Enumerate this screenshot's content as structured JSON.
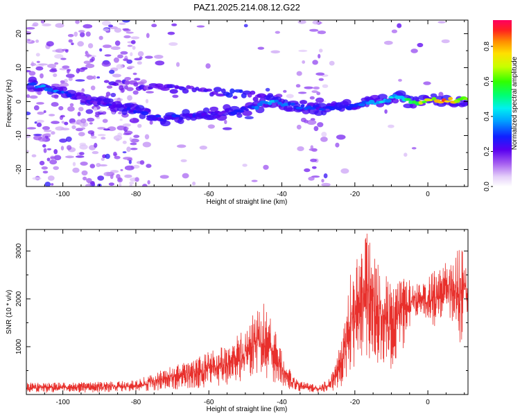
{
  "title": "PAZ1.2025.214.08.12.G22",
  "colors": {
    "snr_line": "#e8302c",
    "frame": "#000000"
  },
  "chart_data": [
    {
      "type": "heatmap",
      "xlabel": "Height of straight line (km)",
      "ylabel": "Frequency (Hz)",
      "xlim": [
        -110,
        11
      ],
      "ylim": [
        -25,
        24
      ],
      "xticks": [
        -100,
        -80,
        -60,
        -40,
        -20,
        0
      ],
      "yticks": [
        -20,
        -10,
        0,
        10,
        20
      ],
      "colorbar": {
        "label": "Normalized spectral amplitude",
        "range": [
          0,
          0.95
        ],
        "ticks": [
          "0.0",
          "0.2",
          "0.4",
          "0.6",
          "0.8"
        ],
        "colormap": "white-purple-blue-cyan-green-yellow-orange-red"
      },
      "main_track": [
        {
          "x": -108,
          "y": 5,
          "v": 0.35
        },
        {
          "x": -104,
          "y": 3.5,
          "v": 0.45
        },
        {
          "x": -95,
          "y": 1,
          "v": 0.2
        },
        {
          "x": -83,
          "y": -2,
          "v": 0.3
        },
        {
          "x": -73,
          "y": -5,
          "v": 0.3
        },
        {
          "x": -66,
          "y": -4.5,
          "v": 0.3
        },
        {
          "x": -58,
          "y": -3.5,
          "v": 0.25
        },
        {
          "x": -50,
          "y": -2.5,
          "v": 0.3
        },
        {
          "x": -43,
          "y": 0,
          "v": 0.5
        },
        {
          "x": -38,
          "y": -1,
          "v": 0.35
        },
        {
          "x": -30,
          "y": -2,
          "v": 0.3
        },
        {
          "x": -22,
          "y": -1.5,
          "v": 0.35
        },
        {
          "x": -13,
          "y": 0,
          "v": 0.45
        },
        {
          "x": -8,
          "y": 1.5,
          "v": 0.5
        },
        {
          "x": -4,
          "y": -0.5,
          "v": 0.7
        },
        {
          "x": 0,
          "y": 0.5,
          "v": 0.85
        },
        {
          "x": 5,
          "y": 0.3,
          "v": 0.9
        },
        {
          "x": 10,
          "y": 0.5,
          "v": 0.8
        }
      ],
      "upper_branch": [
        {
          "x": -85,
          "y": 5,
          "v": 0.2
        },
        {
          "x": -70,
          "y": 4,
          "v": 0.2
        },
        {
          "x": -60,
          "y": 3,
          "v": 0.25
        },
        {
          "x": -50,
          "y": 2,
          "v": 0.25
        },
        {
          "x": -42,
          "y": 1,
          "v": 0.2
        }
      ]
    },
    {
      "type": "line",
      "xlabel": "Height of straight line (km)",
      "ylabel": "SNR (10 * v/v)",
      "xlim": [
        -110,
        11
      ],
      "ylim": [
        0,
        3450
      ],
      "xticks": [
        -100,
        -80,
        -60,
        -40,
        -20,
        0
      ],
      "yticks": [
        1000,
        2000,
        3000
      ],
      "envelope": {
        "x": [
          -110,
          -100,
          -90,
          -85,
          -80,
          -75,
          -70,
          -65,
          -60,
          -55,
          -50,
          -47,
          -45,
          -43,
          -40,
          -37,
          -35,
          -30,
          -27,
          -25,
          -23,
          -21,
          -20,
          -18,
          -16,
          -14,
          -12,
          -10,
          -8,
          -6,
          -4,
          -2,
          0,
          2,
          4,
          6,
          8,
          9,
          10,
          11
        ],
        "lower": [
          30,
          40,
          40,
          50,
          60,
          80,
          100,
          120,
          150,
          200,
          300,
          400,
          350,
          300,
          150,
          80,
          60,
          40,
          60,
          100,
          200,
          400,
          600,
          800,
          700,
          600,
          600,
          500,
          700,
          1100,
          1600,
          1700,
          1500,
          1300,
          1700,
          1500,
          1300,
          900,
          1800,
          1700
        ],
        "upper": [
          250,
          250,
          270,
          280,
          300,
          450,
          600,
          700,
          900,
          1050,
          1400,
          1800,
          1950,
          1650,
          900,
          400,
          280,
          200,
          350,
          700,
          1500,
          2700,
          2900,
          3200,
          3450,
          3000,
          2600,
          2300,
          2500,
          2450,
          2400,
          2300,
          2500,
          2600,
          2650,
          2900,
          3000,
          3200,
          2900,
          2300
        ]
      },
      "series": [
        {
          "color": "#e8302c"
        }
      ]
    }
  ]
}
